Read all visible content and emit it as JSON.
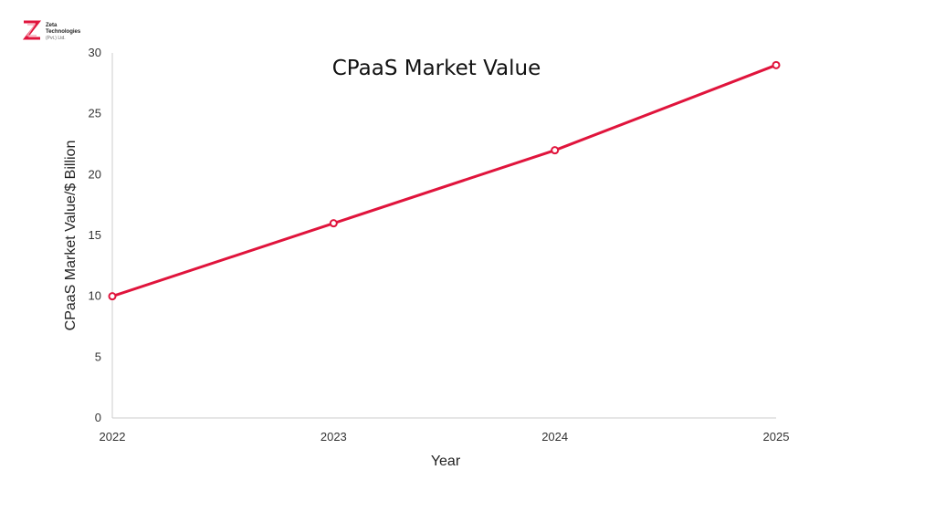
{
  "logo": {
    "line1": "Zeta",
    "line2": "Technologies",
    "line3": "(Pvt.) Ltd."
  },
  "colors": {
    "series": "#e0143c",
    "axis": "#cccccc",
    "text": "#333333"
  },
  "chart_data": {
    "type": "line",
    "title": "CPaaS Market Value",
    "xlabel": "Year",
    "ylabel": "CPaaS Market Value/$ Billion",
    "categories": [
      "2022",
      "2023",
      "2024",
      "2025"
    ],
    "series": [
      {
        "name": "CPaaS Market Value",
        "values": [
          10,
          16,
          22,
          29
        ]
      }
    ],
    "yticks": [
      0,
      5,
      10,
      15,
      20,
      25,
      30
    ],
    "ylim": [
      0,
      30
    ],
    "grid": false,
    "legend": "none"
  }
}
